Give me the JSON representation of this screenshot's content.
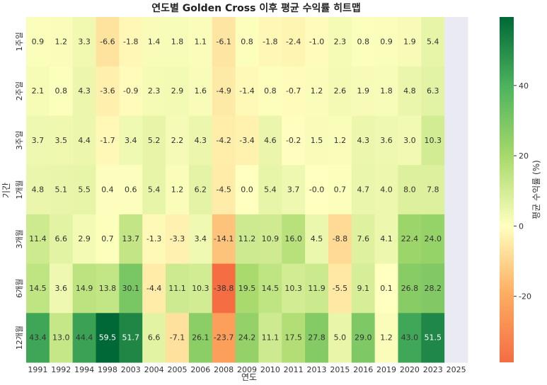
{
  "chart_data": {
    "type": "heatmap",
    "title": "연도별 Golden Cross 이후 평균 수익률 히트맵",
    "xlabel": "연도",
    "ylabel": "기간",
    "colorbar_label": "평균 수익률 (%)",
    "colorbar_ticks": [
      40,
      20,
      0,
      -20
    ],
    "value_range": [
      -38.8,
      59.5
    ],
    "colormap": "RdYlGn",
    "missing_color": "#eaeaf2",
    "x": [
      "1991",
      "1992",
      "1994",
      "1998",
      "2003",
      "2004",
      "2005",
      "2006",
      "2008",
      "2009",
      "2010",
      "2011",
      "2013",
      "2015",
      "2016",
      "2019",
      "2020",
      "2023",
      "2025"
    ],
    "y": [
      "1주일",
      "2주일",
      "3주일",
      "1개월",
      "3개월",
      "6개월",
      "12개월"
    ],
    "values": [
      [
        0.9,
        1.2,
        3.3,
        -6.6,
        -1.8,
        1.4,
        1.8,
        1.1,
        -6.1,
        0.8,
        -1.8,
        -2.4,
        -1.0,
        2.3,
        0.8,
        0.9,
        1.9,
        5.4,
        null
      ],
      [
        2.1,
        0.8,
        4.3,
        -3.6,
        -0.9,
        2.3,
        2.9,
        1.6,
        -4.9,
        -1.4,
        0.8,
        -0.7,
        1.2,
        2.6,
        1.9,
        1.8,
        4.8,
        6.3,
        null
      ],
      [
        3.7,
        3.5,
        4.4,
        -1.7,
        3.4,
        5.2,
        2.2,
        4.3,
        -4.2,
        -3.4,
        4.6,
        -0.2,
        1.5,
        1.2,
        4.3,
        3.6,
        3.0,
        10.3,
        null
      ],
      [
        4.8,
        5.1,
        5.5,
        0.4,
        0.6,
        5.4,
        1.2,
        6.2,
        -4.5,
        0.0,
        5.4,
        3.7,
        -0.0,
        0.7,
        4.7,
        4.0,
        8.0,
        7.8,
        null
      ],
      [
        11.4,
        6.6,
        2.9,
        0.7,
        13.7,
        -1.3,
        -3.3,
        3.4,
        -14.1,
        11.2,
        10.9,
        16.0,
        4.5,
        -8.8,
        7.6,
        4.1,
        22.4,
        24.0,
        null
      ],
      [
        14.5,
        3.6,
        14.9,
        13.8,
        30.1,
        -4.4,
        11.1,
        10.3,
        -38.8,
        19.5,
        14.5,
        10.3,
        11.9,
        -5.5,
        9.1,
        0.1,
        26.8,
        28.2,
        null
      ],
      [
        43.4,
        13.0,
        44.4,
        59.5,
        51.7,
        6.6,
        -7.1,
        26.1,
        -23.7,
        24.2,
        11.1,
        17.5,
        27.8,
        5.0,
        29.0,
        1.2,
        43.0,
        51.5,
        null
      ]
    ]
  }
}
